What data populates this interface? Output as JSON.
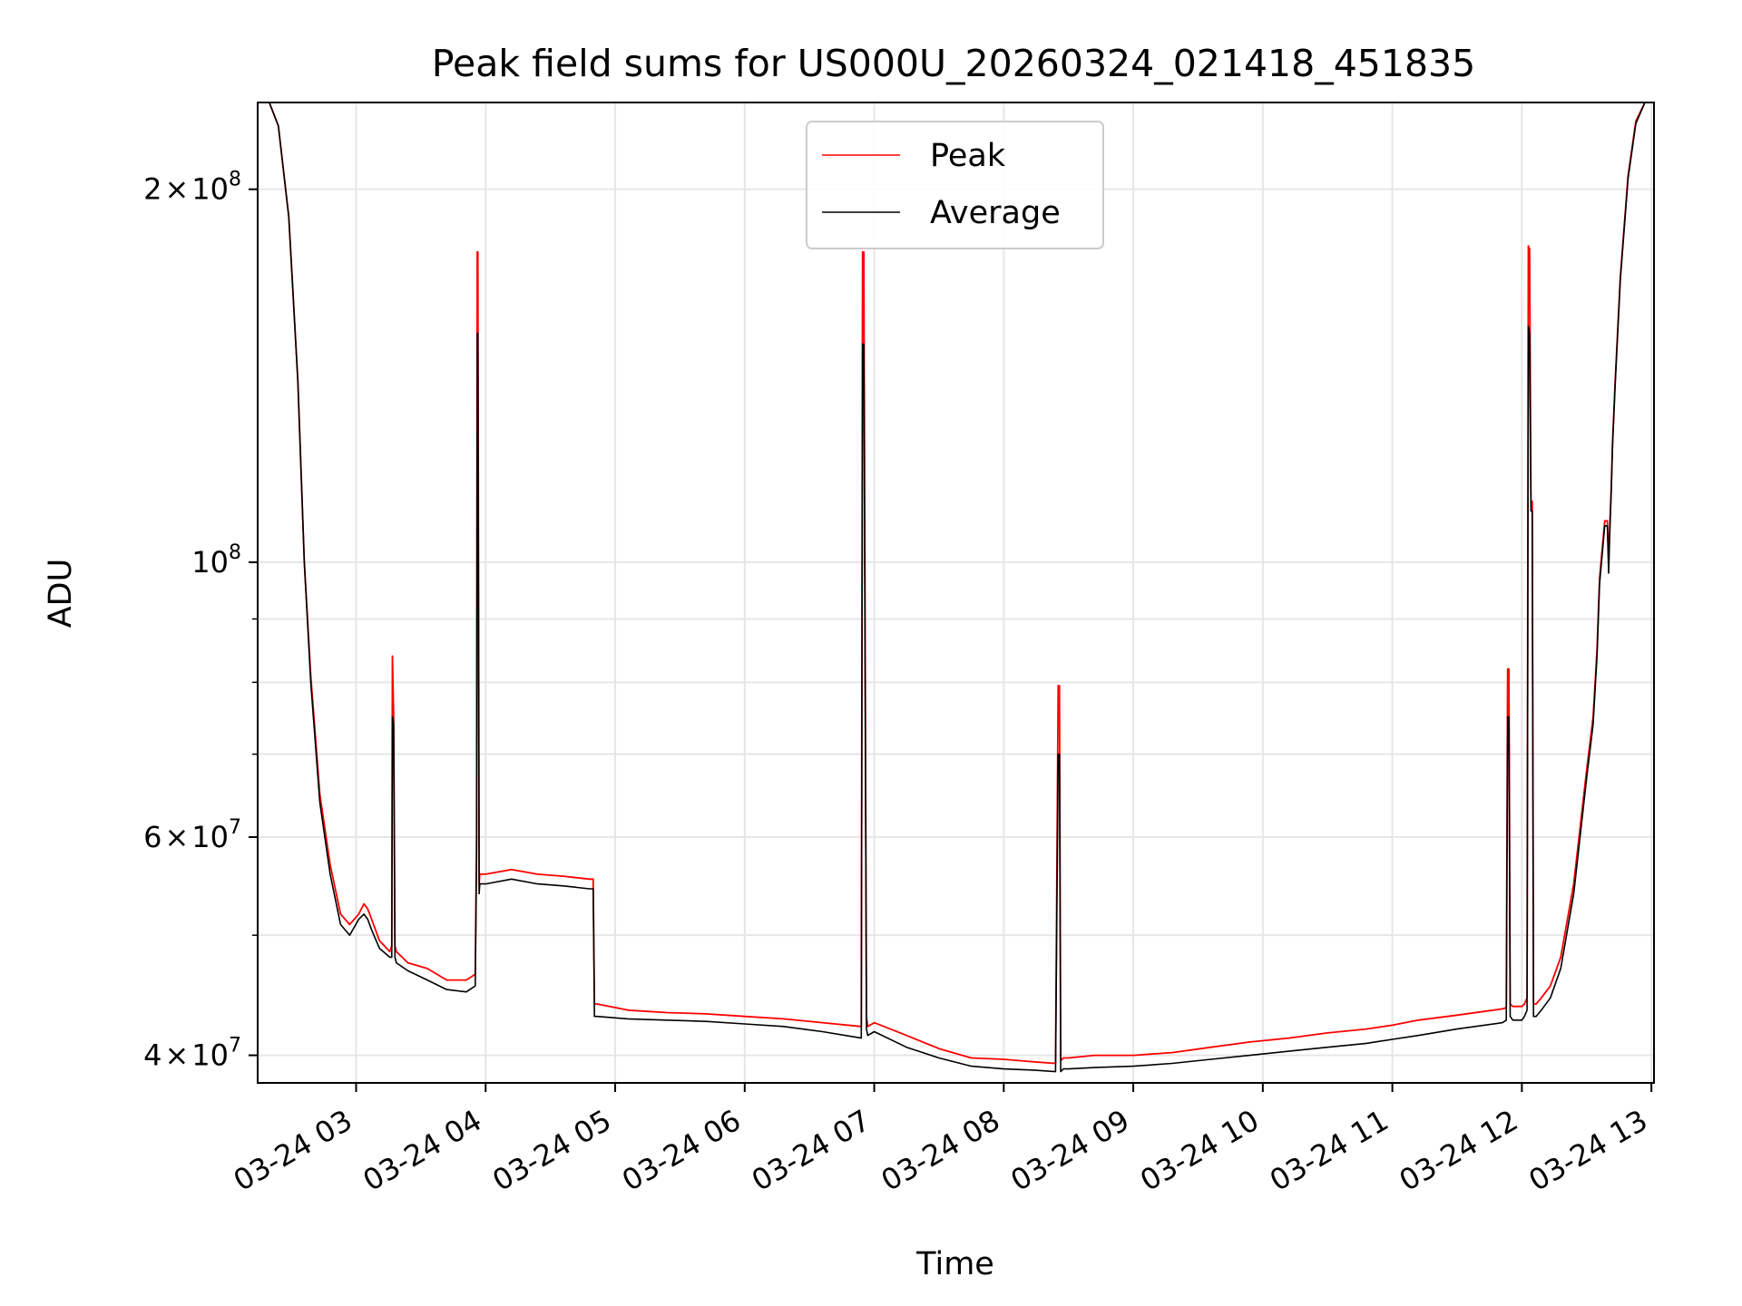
{
  "chart_data": {
    "type": "line",
    "title": "Peak field sums for US000U_20260324_021418_451835",
    "xlabel": "Time",
    "ylabel": "ADU",
    "x_unit": "hours",
    "xlim": [
      2.24,
      13.02
    ],
    "ylim": [
      38000000,
      235000000
    ],
    "yscale": "log",
    "x_ticks": [
      {
        "value": 3,
        "label": "03-24 03"
      },
      {
        "value": 4,
        "label": "03-24 04"
      },
      {
        "value": 5,
        "label": "03-24 05"
      },
      {
        "value": 6,
        "label": "03-24 06"
      },
      {
        "value": 7,
        "label": "03-24 07"
      },
      {
        "value": 8,
        "label": "03-24 08"
      },
      {
        "value": 9,
        "label": "03-24 09"
      },
      {
        "value": 10,
        "label": "03-24 10"
      },
      {
        "value": 11,
        "label": "03-24 11"
      },
      {
        "value": 12,
        "label": "03-24 12"
      },
      {
        "value": 13,
        "label": "03-24 13"
      }
    ],
    "y_major_ticks": [
      {
        "value": 40000000,
        "mantissa": "4",
        "times": "×",
        "base": "10",
        "exp": "7"
      },
      {
        "value": 60000000,
        "mantissa": "6",
        "times": "×",
        "base": "10",
        "exp": "7"
      },
      {
        "value": 100000000,
        "mantissa": "",
        "times": "",
        "base": "10",
        "exp": "8"
      },
      {
        "value": 200000000,
        "mantissa": "2",
        "times": "×",
        "base": "10",
        "exp": "8"
      }
    ],
    "y_minor_ticks": [
      50000000,
      70000000,
      80000000,
      90000000
    ],
    "grid": true,
    "legend_position": "upper-center",
    "series": [
      {
        "name": "Peak",
        "color": "#ff0000",
        "x": [
          2.24,
          2.33,
          2.4,
          2.48,
          2.55,
          2.6,
          2.65,
          2.72,
          2.8,
          2.88,
          2.95,
          3.02,
          3.06,
          3.09,
          3.12,
          3.18,
          3.26,
          3.275,
          3.28,
          3.29,
          3.3,
          3.305,
          3.31,
          3.4,
          3.55,
          3.7,
          3.85,
          3.92,
          3.93,
          3.935,
          3.94,
          3.95,
          3.955,
          3.96,
          4.0,
          4.2,
          4.4,
          4.6,
          4.8,
          4.83,
          4.84,
          4.86,
          5.1,
          5.4,
          5.7,
          6.0,
          6.3,
          6.6,
          6.9,
          6.91,
          6.92,
          6.94,
          6.95,
          7.0,
          7.25,
          7.5,
          7.75,
          8.0,
          8.25,
          8.4,
          8.42,
          8.43,
          8.44,
          8.46,
          8.5,
          8.7,
          9.0,
          9.3,
          9.6,
          9.9,
          10.2,
          10.5,
          10.8,
          11.0,
          11.2,
          11.5,
          11.85,
          11.88,
          11.89,
          11.9,
          11.91,
          11.93,
          12.0,
          12.02,
          12.04,
          12.05,
          12.06,
          12.07,
          12.08,
          12.09,
          12.1,
          12.11,
          12.15,
          12.22,
          12.3,
          12.4,
          12.5,
          12.55,
          12.58,
          12.6,
          12.64,
          12.66,
          12.67,
          12.68,
          12.69,
          12.7,
          12.72,
          12.76,
          12.82,
          12.88,
          12.95,
          13.02
        ],
        "y": [
          235000000,
          235000000,
          225000000,
          190000000,
          140000000,
          100000000,
          81000000,
          65000000,
          57000000,
          52000000,
          51000000,
          52000000,
          53000000,
          52500000,
          51500000,
          49500000,
          48500000,
          49000000,
          84000000,
          75000000,
          49000000,
          48800000,
          48500000,
          47500000,
          47000000,
          46000000,
          46000000,
          46500000,
          60000000,
          178000000,
          178000000,
          55000000,
          56000000,
          56000000,
          56000000,
          56500000,
          56000000,
          55800000,
          55500000,
          55500000,
          44000000,
          44000000,
          43500000,
          43300000,
          43200000,
          43000000,
          42800000,
          42500000,
          42200000,
          178000000,
          178000000,
          43000000,
          42200000,
          42500000,
          41500000,
          40500000,
          39800000,
          39700000,
          39500000,
          39400000,
          79500000,
          79500000,
          39600000,
          39800000,
          39800000,
          40000000,
          40000000,
          40200000,
          40600000,
          41000000,
          41300000,
          41700000,
          42000000,
          42300000,
          42700000,
          43100000,
          43600000,
          43700000,
          82000000,
          82000000,
          44000000,
          43800000,
          43800000,
          44000000,
          44500000,
          180000000,
          179000000,
          112000000,
          112000000,
          44000000,
          44000000,
          44000000,
          44500000,
          45500000,
          48000000,
          55000000,
          68000000,
          75000000,
          85000000,
          97000000,
          108000000,
          108000000,
          100000000,
          108000000,
          115000000,
          125000000,
          140000000,
          170000000,
          205000000,
          227000000,
          235000000,
          235000000
        ]
      },
      {
        "name": "Average",
        "color": "#000000",
        "x": [
          2.24,
          2.33,
          2.4,
          2.48,
          2.55,
          2.6,
          2.65,
          2.72,
          2.8,
          2.88,
          2.95,
          3.02,
          3.06,
          3.09,
          3.12,
          3.18,
          3.26,
          3.275,
          3.28,
          3.29,
          3.3,
          3.305,
          3.31,
          3.4,
          3.55,
          3.7,
          3.85,
          3.92,
          3.93,
          3.935,
          3.94,
          3.95,
          3.955,
          3.96,
          4.0,
          4.2,
          4.4,
          4.6,
          4.8,
          4.83,
          4.84,
          4.86,
          5.1,
          5.4,
          5.7,
          6.0,
          6.3,
          6.6,
          6.9,
          6.91,
          6.92,
          6.94,
          6.95,
          7.0,
          7.25,
          7.5,
          7.75,
          8.0,
          8.25,
          8.4,
          8.42,
          8.43,
          8.44,
          8.46,
          8.5,
          8.7,
          9.0,
          9.3,
          9.6,
          9.9,
          10.2,
          10.5,
          10.8,
          11.0,
          11.2,
          11.5,
          11.85,
          11.88,
          11.89,
          11.9,
          11.91,
          11.93,
          12.0,
          12.02,
          12.04,
          12.05,
          12.06,
          12.07,
          12.08,
          12.09,
          12.1,
          12.11,
          12.15,
          12.22,
          12.3,
          12.4,
          12.5,
          12.55,
          12.58,
          12.6,
          12.64,
          12.66,
          12.67,
          12.68,
          12.69,
          12.7,
          12.72,
          12.76,
          12.82,
          12.88,
          12.95,
          13.02
        ],
        "y": [
          235000000,
          235000000,
          225000000,
          190000000,
          140000000,
          100000000,
          80000000,
          64000000,
          56000000,
          51000000,
          50000000,
          51500000,
          52000000,
          51500000,
          50500000,
          48800000,
          48000000,
          48000000,
          75000000,
          74000000,
          48000000,
          47800000,
          47500000,
          46800000,
          46000000,
          45200000,
          45000000,
          45500000,
          58000000,
          153000000,
          153000000,
          54000000,
          55000000,
          55000000,
          55000000,
          55500000,
          55000000,
          54800000,
          54500000,
          54500000,
          43000000,
          43000000,
          42800000,
          42700000,
          42600000,
          42400000,
          42200000,
          41800000,
          41300000,
          150000000,
          150000000,
          42000000,
          41500000,
          41800000,
          40600000,
          39800000,
          39200000,
          39000000,
          38900000,
          38800000,
          70000000,
          70000000,
          38800000,
          39000000,
          39000000,
          39100000,
          39200000,
          39400000,
          39700000,
          40000000,
          40300000,
          40600000,
          40900000,
          41200000,
          41500000,
          42000000,
          42500000,
          42700000,
          75000000,
          75000000,
          43000000,
          42700000,
          42700000,
          43000000,
          43500000,
          155000000,
          153000000,
          110000000,
          110000000,
          43000000,
          43000000,
          43000000,
          43500000,
          44500000,
          47000000,
          54000000,
          67000000,
          74000000,
          84000000,
          96000000,
          107000000,
          107000000,
          98000000,
          107000000,
          114000000,
          124000000,
          139000000,
          169000000,
          204000000,
          226000000,
          235000000,
          235000000
        ]
      }
    ]
  }
}
